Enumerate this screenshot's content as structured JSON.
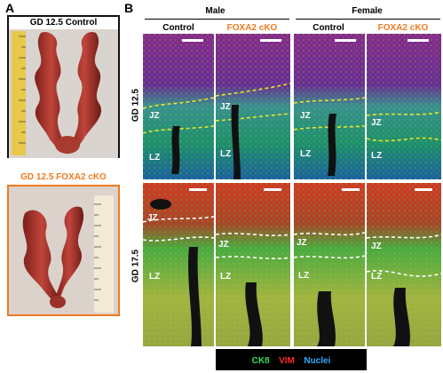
{
  "panel_a": {
    "letter": "A",
    "control_title": "GD 12.5 Control",
    "cko_title": "GD 12.5 FOXA2 cKO"
  },
  "panel_b": {
    "letter": "B",
    "sex_labels": [
      "Male",
      "Female"
    ],
    "column_labels": [
      "Control",
      "FOXA2 cKO",
      "Control",
      "FOXA2 cKO"
    ],
    "row_labels": [
      "GD 12.5",
      "GD 17.5"
    ],
    "zone_labels": {
      "jz": "JZ",
      "lz": "LZ"
    }
  },
  "legend": {
    "ck8": "CK8",
    "vim": "VIM",
    "nuclei": "Nuclei",
    "colors": {
      "ck8": "#34e05a",
      "vim": "#ff2a2a",
      "nuclei": "#33aaff",
      "background": "#000000"
    }
  },
  "colors": {
    "accent_orange": "#f07a20",
    "frame_black": "#111111"
  }
}
